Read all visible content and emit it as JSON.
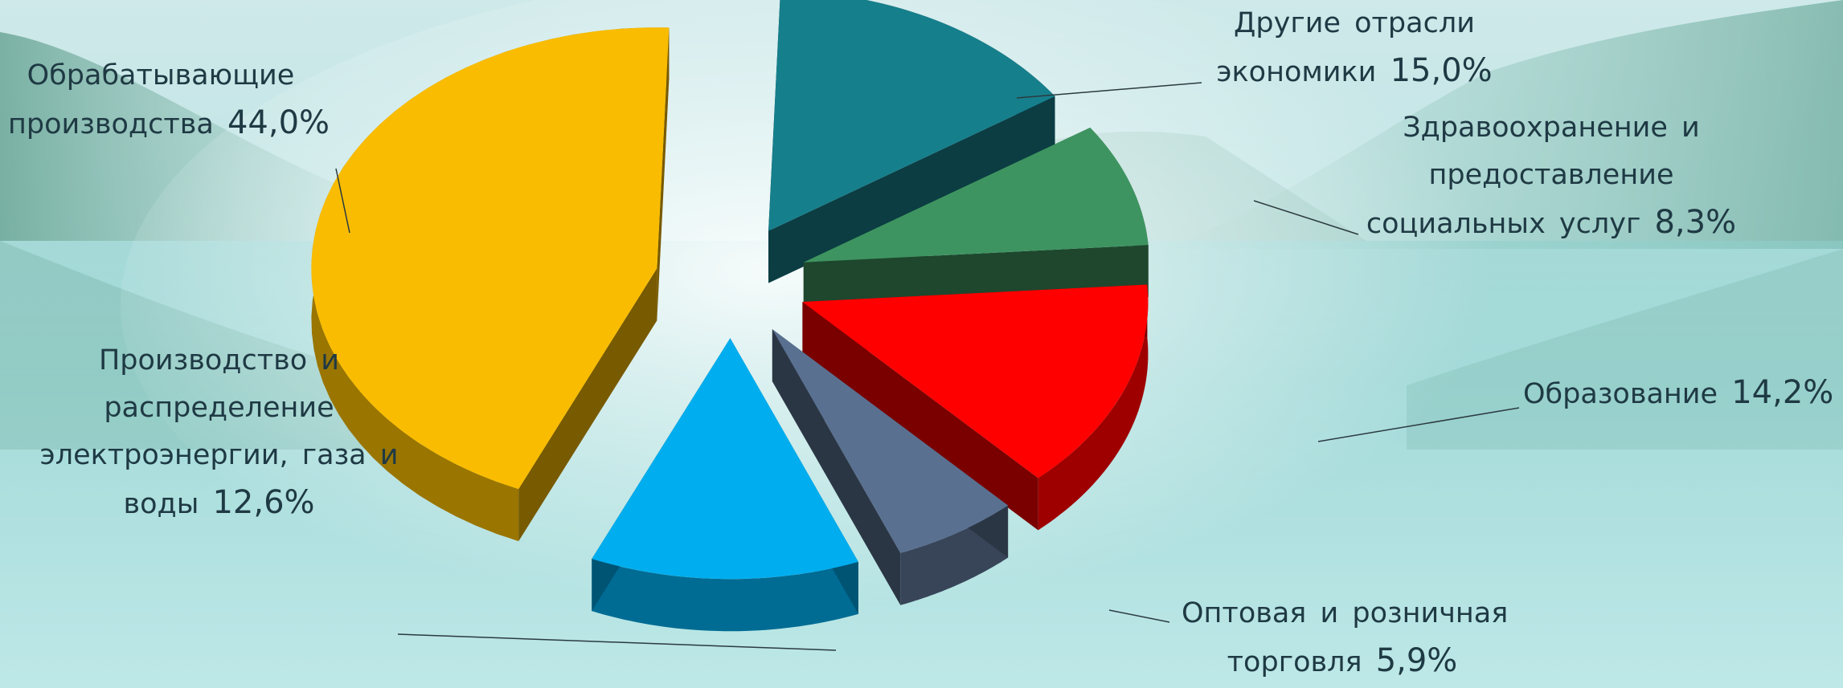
{
  "colors": {
    "manufacturing": "#F9BC00",
    "energy": "#00AEEF",
    "trade": "#5A7090",
    "education": "#FF0000",
    "health": "#3E9460",
    "other": "#167F8C",
    "label_text": "#1f3a44",
    "leader_line": "#2b3a40"
  },
  "chart_data": {
    "type": "pie",
    "title": "",
    "exploded": true,
    "three_d": true,
    "slices": [
      {
        "lines": [
          "Обрабатывающие",
          "производства"
        ],
        "pct": "44,0%",
        "value": 44.0,
        "color": "#F9BC00"
      },
      {
        "lines": [
          "Производство и",
          "распределение",
          "электроэнергии, газа и",
          "воды"
        ],
        "pct": "12,6%",
        "value": 12.6,
        "color": "#00AEEF"
      },
      {
        "lines": [
          "Оптовая и розничная",
          "торговля"
        ],
        "pct": "5,9%",
        "value": 5.9,
        "color": "#5A7090"
      },
      {
        "lines": [
          "Образование"
        ],
        "pct": "14,2%",
        "value": 14.2,
        "color": "#FF0000"
      },
      {
        "lines": [
          "Здравоохранение и",
          "предоставление",
          "социальных услуг"
        ],
        "pct": "8,3%",
        "value": 8.3,
        "color": "#3E9460"
      },
      {
        "lines": [
          "Другие отрасли",
          "экономики"
        ],
        "pct": "15,0%",
        "value": 15.0,
        "color": "#167F8C"
      }
    ]
  }
}
